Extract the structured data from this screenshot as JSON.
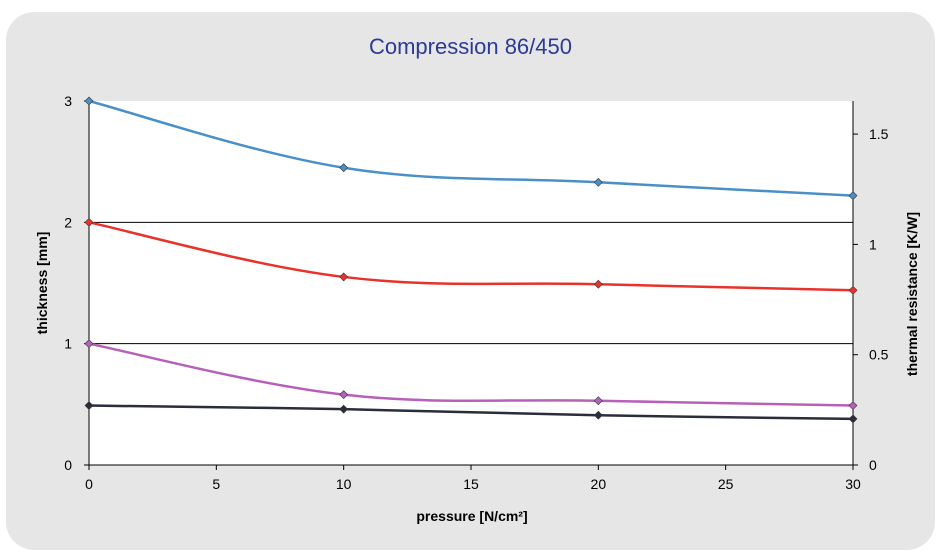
{
  "chart_data": {
    "type": "line",
    "title": "Compression 86/450",
    "xlabel": "pressure [N/cm²]",
    "ylabel_left": "thickness [mm]",
    "ylabel_right": "thermal resistance [K/W]",
    "xlim": [
      0,
      30
    ],
    "ylim_left": [
      0,
      3
    ],
    "ylim_right": [
      0,
      1.65
    ],
    "x_ticks": [
      "0",
      "5",
      "10",
      "15",
      "20",
      "25",
      "30"
    ],
    "y_left_ticks": [
      "0",
      "1",
      "2",
      "3"
    ],
    "y_right_ticks": [
      "0",
      "0.5",
      "1",
      "1.5"
    ],
    "grid": "horizontal",
    "x": [
      0,
      10,
      20,
      30
    ],
    "series": [
      {
        "axis": "left",
        "color": "#4a90c8",
        "values": [
          3.0,
          2.45,
          2.33,
          2.22
        ]
      },
      {
        "axis": "left",
        "color": "#e8322a",
        "values": [
          2.0,
          1.55,
          1.49,
          1.44
        ]
      },
      {
        "axis": "left",
        "color": "#b760b9",
        "values": [
          1.0,
          0.58,
          0.53,
          0.49
        ]
      },
      {
        "axis": "left",
        "color": "#2a2d3a",
        "values": [
          0.49,
          0.46,
          0.41,
          0.38
        ]
      }
    ]
  }
}
